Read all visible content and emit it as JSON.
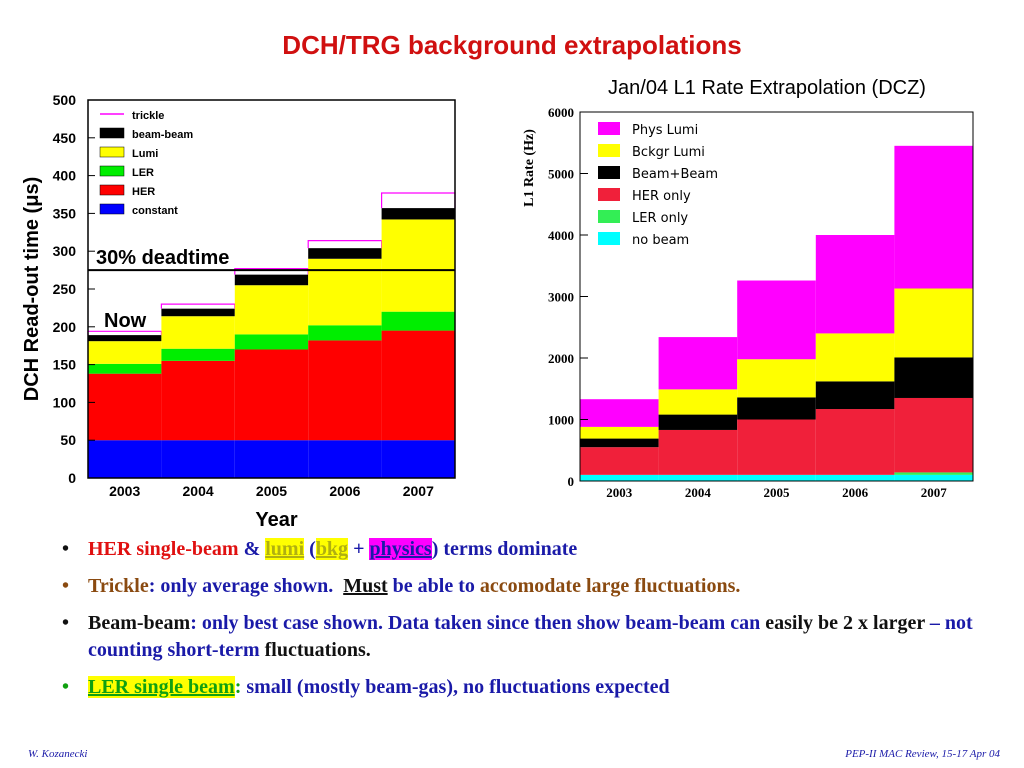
{
  "title": "DCH/TRG background extrapolations",
  "chart_data": [
    {
      "type": "bar",
      "stacked": true,
      "title": "",
      "xlabel": "Year",
      "ylabel": "DCH Read-out time (μs)",
      "ylim": [
        0,
        500
      ],
      "yticks": [
        "0",
        "50",
        "100",
        "150",
        "200",
        "250",
        "300",
        "350",
        "400",
        "450",
        "500"
      ],
      "categories": [
        "2003",
        "2004",
        "2005",
        "2006",
        "2007"
      ],
      "legend": {
        "placement": "top-left"
      },
      "series": [
        {
          "name": "constant",
          "color": "#0000ff",
          "values": [
            50,
            50,
            50,
            50,
            50
          ]
        },
        {
          "name": "HER",
          "color": "#ff0000",
          "values": [
            88,
            105,
            120,
            132,
            145
          ]
        },
        {
          "name": "LER",
          "color": "#00ee00",
          "values": [
            13,
            16,
            20,
            20,
            25
          ]
        },
        {
          "name": "Lumi",
          "color": "#ffff00",
          "values": [
            30,
            43,
            65,
            88,
            122
          ]
        },
        {
          "name": "beam-beam",
          "color": "#000000",
          "values": [
            8,
            10,
            14,
            14,
            15
          ]
        },
        {
          "name": "trickle",
          "color": "#ff00ff",
          "values": [
            5,
            6,
            8,
            10,
            20
          ],
          "style": "outline"
        }
      ],
      "annotations": [
        {
          "text": "30% deadtime",
          "y": 275
        },
        {
          "text": "Now"
        }
      ]
    },
    {
      "type": "bar",
      "stacked": true,
      "title": "Jan/04 L1 Rate Extrapolation (DCZ)",
      "xlabel": "",
      "ylabel": "L1 Rate (Hz)",
      "ylim": [
        0,
        6000
      ],
      "yticks": [
        "0",
        "1000",
        "2000",
        "3000",
        "4000",
        "5000",
        "6000"
      ],
      "categories": [
        "2003",
        "2004",
        "2005",
        "2006",
        "2007"
      ],
      "legend": {
        "placement": "top-left"
      },
      "series": [
        {
          "name": "no beam",
          "color": "#00ffff",
          "values": [
            100,
            100,
            100,
            100,
            100
          ]
        },
        {
          "name": "LER only",
          "color": "#33ee55",
          "values": [
            0,
            0,
            0,
            0,
            40
          ]
        },
        {
          "name": "HER only",
          "color": "#f0203a",
          "values": [
            450,
            730,
            900,
            1070,
            1210
          ]
        },
        {
          "name": "Beam+Beam",
          "color": "#000000",
          "values": [
            140,
            250,
            360,
            450,
            660
          ]
        },
        {
          "name": "Bckgr Lumi",
          "color": "#ffff00",
          "values": [
            190,
            410,
            620,
            780,
            1120
          ]
        },
        {
          "name": "Phys Lumi",
          "color": "#ff00ff",
          "values": [
            450,
            850,
            1280,
            1600,
            2320
          ]
        }
      ]
    }
  ],
  "bullets": {
    "b1": {
      "her": "HER single-beam",
      "amp": " & ",
      "lumi": "lumi",
      "open": " (",
      "bkg": "bkg",
      "plus": " + ",
      "physics": "physics",
      "close": ")",
      "rest": " terms dominate"
    },
    "b2": {
      "trickle": "Trickle",
      "colon": ": ",
      "avg": "only average shown.",
      "must": "Must",
      "able": " be able to ",
      "accom": "accomodate large fluctuations",
      "dot": "."
    },
    "b3": {
      "bb": "Beam-beam",
      "colon": ": ",
      "best": "only best case shown. Data taken since then show beam-beam can",
      "easily": "easily be 2 x larger",
      "dash": " – ",
      "notc": "not counting short-term",
      "fluct": " fluctuations."
    },
    "b4": {
      "ler": "LER single beam",
      "colon": ":",
      "rest": " small (mostly beam-gas), no fluctuations expected"
    }
  },
  "footer": {
    "left": "W. Kozanecki",
    "right": "PEP-II MAC Review, 15-17 Apr 04"
  }
}
